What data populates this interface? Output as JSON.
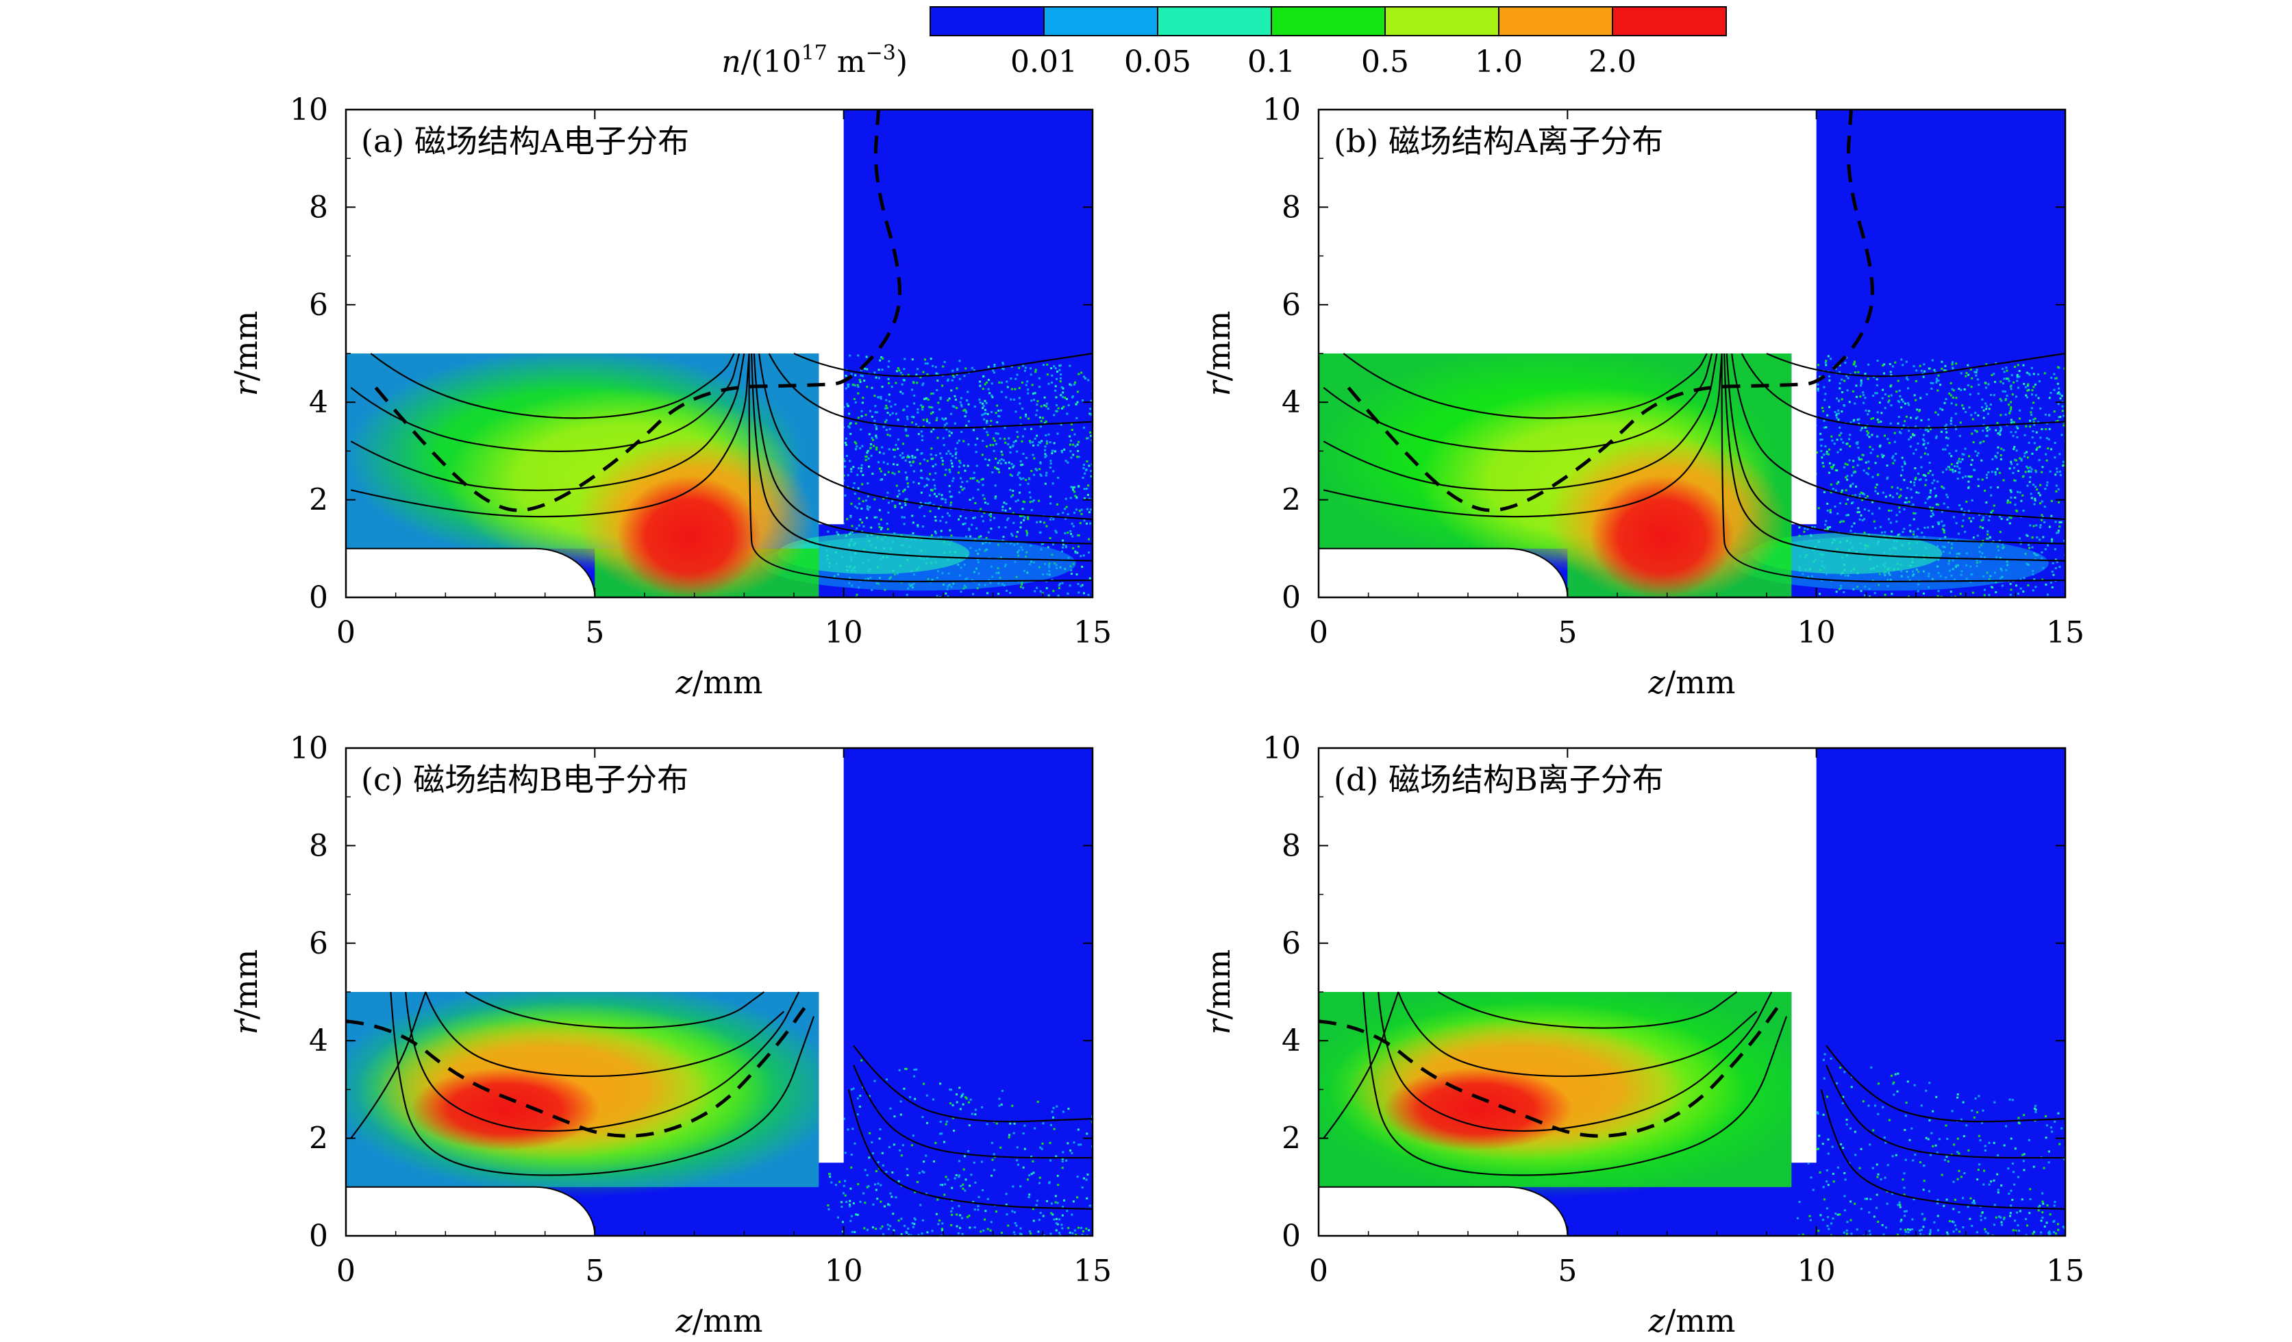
{
  "colorbar": {
    "label_var": "n",
    "label_text": "/(10",
    "label_exp": "17",
    "label_unit": " m",
    "label_unit_exp": "−3",
    "label_close": ")",
    "colors": [
      "#0a14f0",
      "#0aa6f0",
      "#1ef0b4",
      "#14e614",
      "#a6f014",
      "#fa9e14",
      "#f01414"
    ],
    "tick_labels": [
      "0.01",
      "0.05",
      "0.1",
      "0.5",
      "1.0",
      "2.0"
    ]
  },
  "chart_data": [
    {
      "type": "heatmap",
      "title": "(a) 磁场结构A电子分布",
      "xlabel_var": "z",
      "xlabel_unit": "/mm",
      "ylabel_var": "r",
      "ylabel_unit": "/mm",
      "xlim": [
        0,
        15
      ],
      "ylim": [
        0,
        10
      ],
      "xticks": [
        0,
        5,
        10,
        15
      ],
      "yticks": [
        0,
        2,
        4,
        6,
        8,
        10
      ],
      "structure": "A",
      "species": "electron"
    },
    {
      "type": "heatmap",
      "title": "(b) 磁场结构A离子分布",
      "xlabel_var": "z",
      "xlabel_unit": "/mm",
      "ylabel_var": "r",
      "ylabel_unit": "/mm",
      "xlim": [
        0,
        15
      ],
      "ylim": [
        0,
        10
      ],
      "xticks": [
        0,
        5,
        10,
        15
      ],
      "yticks": [
        0,
        2,
        4,
        6,
        8,
        10
      ],
      "structure": "A",
      "species": "ion"
    },
    {
      "type": "heatmap",
      "title": "(c) 磁场结构B电子分布",
      "xlabel_var": "z",
      "xlabel_unit": "/mm",
      "ylabel_var": "r",
      "ylabel_unit": "/mm",
      "xlim": [
        0,
        15
      ],
      "ylim": [
        0,
        10
      ],
      "xticks": [
        0,
        5,
        10,
        15
      ],
      "yticks": [
        0,
        2,
        4,
        6,
        8,
        10
      ],
      "structure": "B",
      "species": "electron"
    },
    {
      "type": "heatmap",
      "title": "(d) 磁场结构B离子分布",
      "xlabel_var": "z",
      "xlabel_unit": "/mm",
      "ylabel_var": "r",
      "ylabel_unit": "/mm",
      "xlim": [
        0,
        15
      ],
      "ylim": [
        0,
        10
      ],
      "xticks": [
        0,
        5,
        10,
        15
      ],
      "yticks": [
        0,
        2,
        4,
        6,
        8,
        10
      ],
      "structure": "B",
      "species": "ion"
    }
  ]
}
